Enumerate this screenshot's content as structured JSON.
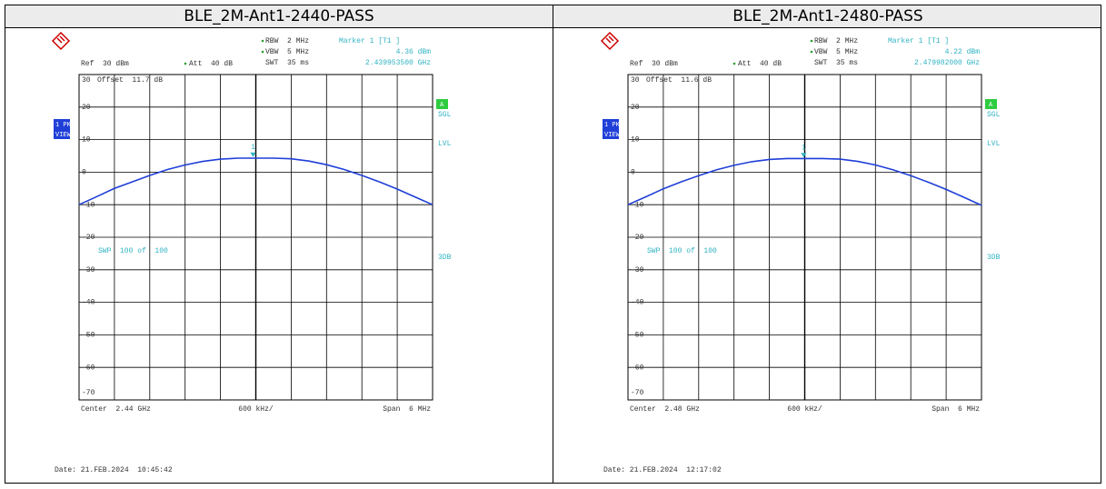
{
  "chart_data": [
    {
      "type": "line",
      "title": "BLE_2M-Ant1-2440-PASS",
      "rbw": "RBW  2 MHz",
      "vbw": "VBW  5 MHz",
      "swt": "SWT  35 ms",
      "ref": "Ref  30 dBm",
      "att": "Att  40 dB",
      "offset": "Offset  11.7 dB",
      "marker": {
        "header": "Marker 1 [T1 ]",
        "name": "1",
        "x": 2.4399535,
        "x_label": "2.439953500 GHz",
        "value": 4.36,
        "value_label": "4.36 dBm"
      },
      "trace_mode": "VIEW",
      "indicators": [
        "A",
        "SGL",
        "LVL",
        "3DB"
      ],
      "sweep": "SWP  100 of  100",
      "center": "Center  2.44 GHz",
      "division": "600 kHz/",
      "span": "Span  6 MHz",
      "date": "Date: 21.FEB.2024  10:45:42",
      "xlim": [
        2.437,
        2.443
      ],
      "ylim": [
        -70,
        30
      ],
      "yticks": [
        30,
        20,
        10,
        0,
        -10,
        -20,
        -30,
        -40,
        -50,
        -60,
        -70
      ],
      "grid": true,
      "x": [
        2.437,
        2.4373,
        2.4376,
        2.4379,
        2.4382,
        2.4385,
        2.4388,
        2.4391,
        2.4394,
        2.4397,
        2.44,
        2.4403,
        2.4406,
        2.4409,
        2.4412,
        2.4415,
        2.4418,
        2.4421,
        2.4424,
        2.4427,
        2.443
      ],
      "series": [
        {
          "name": "1 PK",
          "color": "#1f3fd8",
          "values": [
            -10,
            -7.5,
            -5,
            -3,
            -1,
            0.8,
            2.2,
            3.3,
            4.0,
            4.3,
            4.3,
            4.3,
            4.1,
            3.4,
            2.3,
            0.8,
            -1,
            -3,
            -5.2,
            -7.6,
            -10
          ]
        }
      ]
    },
    {
      "type": "line",
      "title": "BLE_2M-Ant1-2480-PASS",
      "rbw": "RBW  2 MHz",
      "vbw": "VBW  5 MHz",
      "swt": "SWT  35 ms",
      "ref": "Ref  30 dBm",
      "att": "Att  40 dB",
      "offset": "Offset  11.6 dB",
      "marker": {
        "header": "Marker 1 [T1 ]",
        "name": "1",
        "x": 2.479982,
        "x_label": "2.479982000 GHz",
        "value": 4.22,
        "value_label": "4.22 dBm"
      },
      "trace_mode": "VIEW",
      "indicators": [
        "A",
        "SGL",
        "LVL",
        "3DB"
      ],
      "sweep": "SWP  100 of  100",
      "center": "Center  2.48 GHz",
      "division": "600 kHz/",
      "span": "Span  6 MHz",
      "date": "Date: 21.FEB.2024  12:17:02",
      "xlim": [
        2.477,
        2.483
      ],
      "ylim": [
        -70,
        30
      ],
      "yticks": [
        30,
        20,
        10,
        0,
        -10,
        -20,
        -30,
        -40,
        -50,
        -60,
        -70
      ],
      "grid": true,
      "x": [
        2.477,
        2.4773,
        2.4776,
        2.4779,
        2.4782,
        2.4785,
        2.4788,
        2.4791,
        2.4794,
        2.4797,
        2.48,
        2.4803,
        2.4806,
        2.4809,
        2.4812,
        2.4815,
        2.4818,
        2.4821,
        2.4824,
        2.4827,
        2.483
      ],
      "series": [
        {
          "name": "1 PK",
          "color": "#1f3fd8",
          "values": [
            -10,
            -7.6,
            -5.1,
            -3,
            -1.1,
            0.7,
            2.1,
            3.2,
            3.9,
            4.2,
            4.2,
            4.2,
            4.0,
            3.3,
            2.2,
            0.7,
            -1.1,
            -3.1,
            -5.3,
            -7.7,
            -10.2
          ]
        }
      ]
    }
  ]
}
